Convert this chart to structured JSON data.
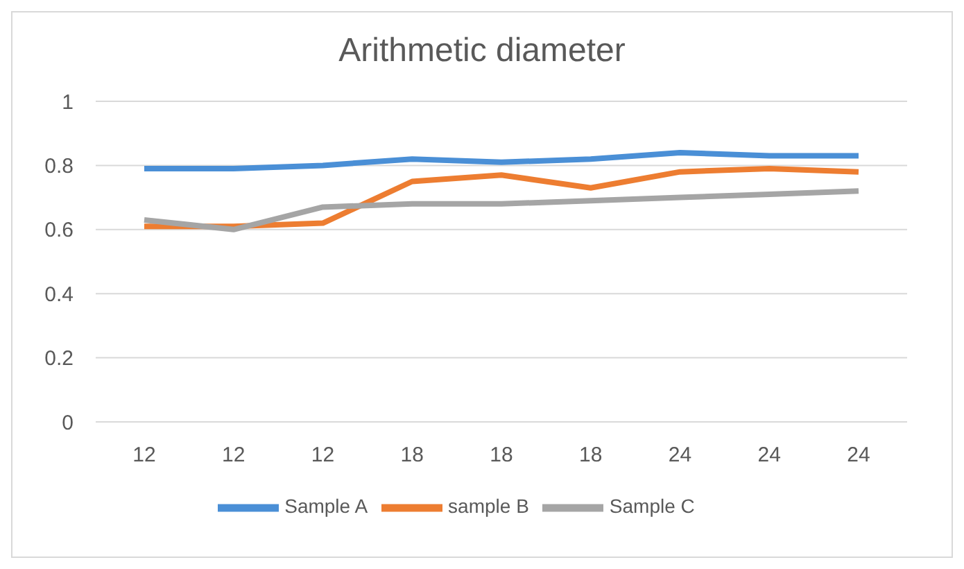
{
  "chart_data": {
    "type": "line",
    "title": "Arithmetic diameter",
    "categories": [
      "12",
      "12",
      "12",
      "18",
      "18",
      "18",
      "24",
      "24",
      "24"
    ],
    "series": [
      {
        "name": "Sample A",
        "color": "#4a8fd6",
        "values": [
          0.79,
          0.79,
          0.8,
          0.82,
          0.81,
          0.82,
          0.84,
          0.83,
          0.83
        ]
      },
      {
        "name": "sample B",
        "color": "#ed7d31",
        "values": [
          0.61,
          0.61,
          0.62,
          0.75,
          0.77,
          0.73,
          0.78,
          0.79,
          0.78
        ]
      },
      {
        "name": "Sample C",
        "color": "#a5a5a5",
        "values": [
          0.63,
          0.6,
          0.67,
          0.68,
          0.68,
          0.69,
          0.7,
          0.71,
          0.72
        ]
      }
    ],
    "ylim": [
      0,
      1
    ],
    "yticks": [
      0,
      0.2,
      0.4,
      0.6,
      0.8,
      1
    ],
    "grid": "y",
    "legend": "bottom",
    "marker": "none",
    "line_style": "solid"
  }
}
